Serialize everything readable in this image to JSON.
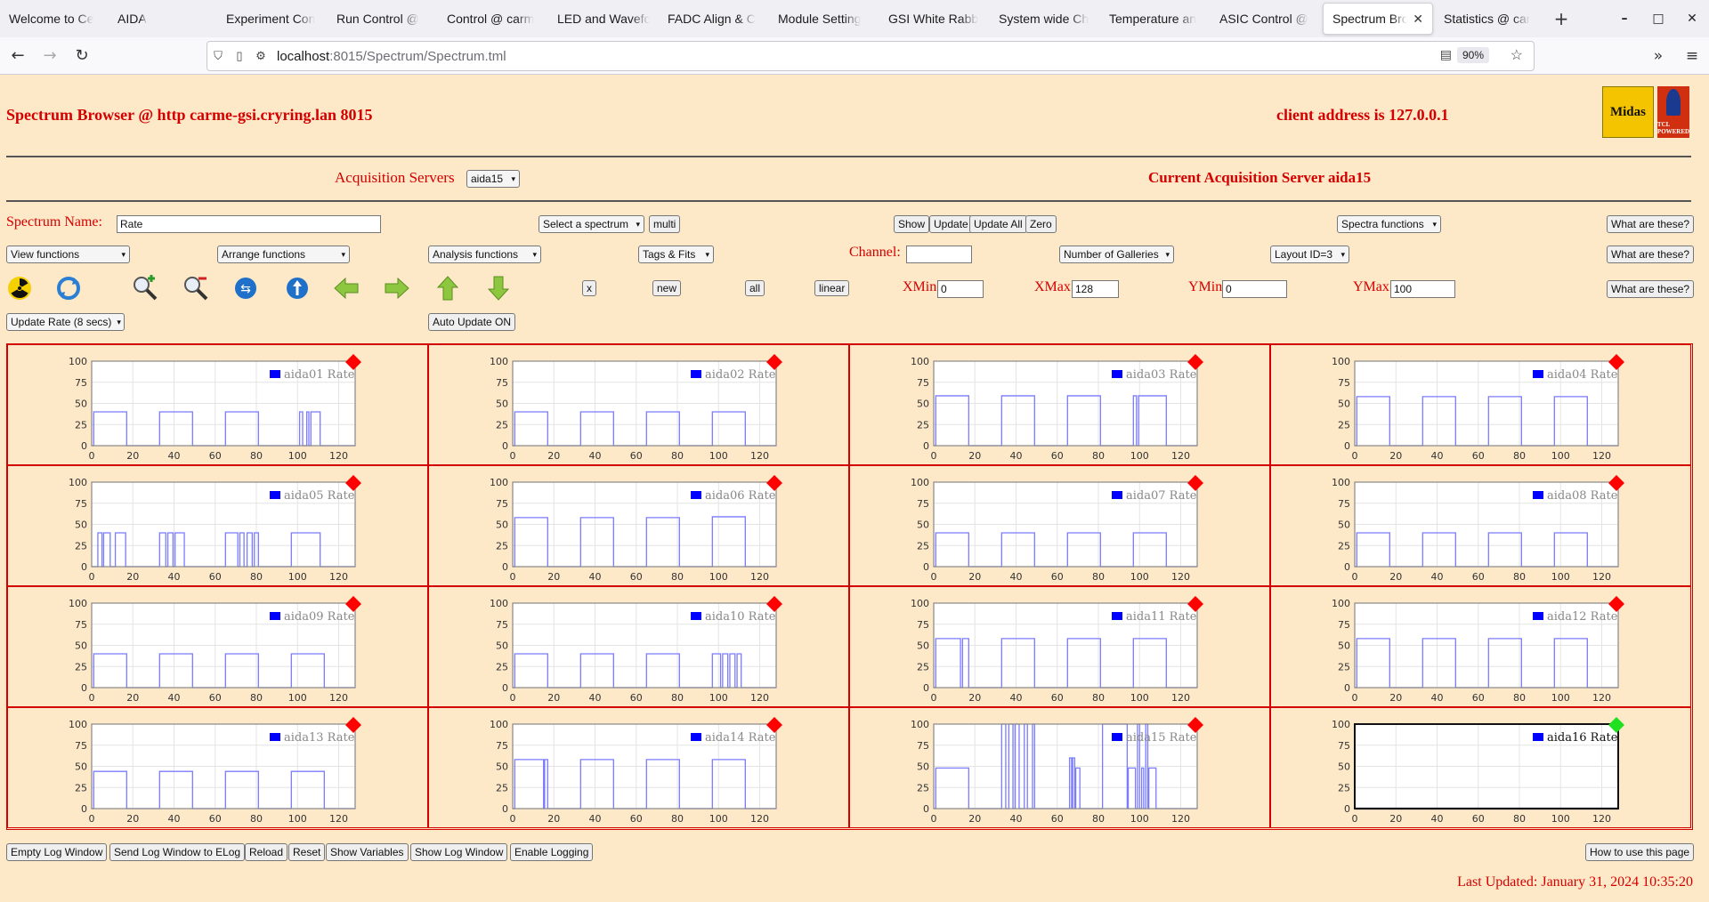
{
  "browser": {
    "tabs": [
      {
        "title": "Welcome to Ce",
        "w": 122
      },
      {
        "title": "AIDA",
        "w": 122
      },
      {
        "title": "Experiment Con",
        "w": 124
      },
      {
        "title": "Run Control @",
        "w": 124
      },
      {
        "title": "Control @ carm",
        "w": 124
      },
      {
        "title": "LED and Wavefo",
        "w": 124
      },
      {
        "title": "FADC Align & C",
        "w": 124
      },
      {
        "title": "Module Setting",
        "w": 124
      },
      {
        "title": "GSI White Rabb",
        "w": 124
      },
      {
        "title": "System wide Ch",
        "w": 124
      },
      {
        "title": "Temperature an",
        "w": 124
      },
      {
        "title": "ASIC Control @",
        "w": 124
      },
      {
        "title": "Spectrum Bro",
        "w": 124,
        "active": true
      },
      {
        "title": "Statistics @ car",
        "w": 124
      }
    ],
    "url_host": "localhost",
    "url_path": ":8015/Spectrum/Spectrum.tml",
    "zoom": "90%"
  },
  "header": {
    "title": "Spectrum Browser @ http carme-gsi.cryring.lan 8015",
    "client": "client address is 127.0.0.1",
    "midas_logo": "Midas",
    "tcl_logo": "TCL POWERED"
  },
  "acq": {
    "label": "Acquisition Servers",
    "selected": "aida15",
    "current": "Current Acquisition Server aida15"
  },
  "row1": {
    "spectrum_name_label": "Spectrum Name:",
    "spectrum_name_value": "Rate",
    "select_spectrum": "Select a spectrum",
    "multi": "multi",
    "show": "Show",
    "update": "Update",
    "update_all": "Update All",
    "zero": "Zero",
    "spectra_functions": "Spectra functions",
    "what": "What are these?"
  },
  "row2": {
    "view_functions": "View functions",
    "arrange_functions": "Arrange functions",
    "analysis_functions": "Analysis functions",
    "tags_fits": "Tags & Fits",
    "channel_label": "Channel:",
    "channel_value": "",
    "galleries": "Number of Galleries",
    "layout": "Layout ID=3",
    "what": "What are these?"
  },
  "row3": {
    "x": "x",
    "new": "new",
    "all": "all",
    "linear": "linear",
    "xmin_label": "XMin",
    "xmin": "0",
    "xmax_label": "XMax",
    "xmax": "128",
    "ymin_label": "YMin",
    "ymin": "0",
    "ymax_label": "YMax",
    "ymax": "100",
    "what": "What are these?"
  },
  "row4": {
    "update_rate": "Update Rate (8 secs)",
    "auto_update": "Auto Update ON"
  },
  "icons": [
    "radiation-icon",
    "refresh-icon",
    "zoom-in-icon",
    "zoom-out-icon",
    "expand-horizontal-icon",
    "expand-vertical-icon",
    "arrow-left-icon",
    "arrow-right-icon",
    "arrow-up-icon",
    "arrow-down-icon"
  ],
  "chart_data": [
    {
      "type": "line",
      "legend": "aida01 Rate",
      "status": "red",
      "xlim": [
        0,
        128
      ],
      "ylim": [
        0,
        100
      ],
      "yticks": [
        0,
        25,
        50,
        75,
        100
      ],
      "xticks": [
        0,
        20,
        40,
        60,
        80,
        100,
        120
      ],
      "segments": [
        [
          1,
          17,
          40
        ],
        [
          33,
          49,
          40
        ],
        [
          65,
          81,
          40
        ],
        [
          101,
          102.5,
          40
        ],
        [
          104.5,
          105.5,
          40
        ],
        [
          106.5,
          111,
          40
        ]
      ]
    },
    {
      "type": "line",
      "legend": "aida02 Rate",
      "status": "red",
      "xlim": [
        0,
        128
      ],
      "ylim": [
        0,
        100
      ],
      "yticks": [
        0,
        25,
        50,
        75,
        100
      ],
      "xticks": [
        0,
        20,
        40,
        60,
        80,
        100,
        120
      ],
      "segments": [
        [
          1,
          17,
          40
        ],
        [
          33,
          49,
          40
        ],
        [
          65,
          81,
          40
        ],
        [
          97,
          113,
          40
        ]
      ]
    },
    {
      "type": "line",
      "legend": "aida03 Rate",
      "status": "red",
      "xlim": [
        0,
        128
      ],
      "ylim": [
        0,
        100
      ],
      "yticks": [
        0,
        25,
        50,
        75,
        100
      ],
      "xticks": [
        0,
        20,
        40,
        60,
        80,
        100,
        120
      ],
      "segments": [
        [
          1,
          17,
          59
        ],
        [
          33,
          49,
          59
        ],
        [
          65,
          81,
          59
        ],
        [
          97,
          98.5,
          59
        ],
        [
          99.5,
          113,
          59
        ]
      ]
    },
    {
      "type": "line",
      "legend": "aida04 Rate",
      "status": "red",
      "xlim": [
        0,
        128
      ],
      "ylim": [
        0,
        100
      ],
      "yticks": [
        0,
        25,
        50,
        75,
        100
      ],
      "xticks": [
        0,
        20,
        40,
        60,
        80,
        100,
        120
      ],
      "segments": [
        [
          1,
          17,
          58
        ],
        [
          33,
          49,
          58
        ],
        [
          65,
          81,
          58
        ],
        [
          97,
          113,
          58
        ]
      ]
    },
    {
      "type": "line",
      "legend": "aida05 Rate",
      "status": "red",
      "xlim": [
        0,
        128
      ],
      "ylim": [
        0,
        100
      ],
      "yticks": [
        0,
        25,
        50,
        75,
        100
      ],
      "xticks": [
        0,
        20,
        40,
        60,
        80,
        100,
        120
      ],
      "segments": [
        [
          3,
          5,
          40
        ],
        [
          5.8,
          9,
          40
        ],
        [
          11.5,
          16.5,
          40
        ],
        [
          33,
          36,
          40
        ],
        [
          37,
          39.5,
          40
        ],
        [
          40.5,
          45,
          40
        ],
        [
          65,
          71,
          40
        ],
        [
          72,
          74,
          40
        ],
        [
          75.5,
          78,
          40
        ],
        [
          79,
          81,
          40
        ],
        [
          97,
          111,
          40
        ]
      ]
    },
    {
      "type": "line",
      "legend": "aida06 Rate",
      "status": "red",
      "xlim": [
        0,
        128
      ],
      "ylim": [
        0,
        100
      ],
      "yticks": [
        0,
        25,
        50,
        75,
        100
      ],
      "xticks": [
        0,
        20,
        40,
        60,
        80,
        100,
        120
      ],
      "segments": [
        [
          1,
          17,
          58
        ],
        [
          33,
          49,
          58
        ],
        [
          65,
          81,
          58
        ],
        [
          97,
          113,
          59
        ]
      ]
    },
    {
      "type": "line",
      "legend": "aida07 Rate",
      "status": "red",
      "xlim": [
        0,
        128
      ],
      "ylim": [
        0,
        100
      ],
      "yticks": [
        0,
        25,
        50,
        75,
        100
      ],
      "xticks": [
        0,
        20,
        40,
        60,
        80,
        100,
        120
      ],
      "segments": [
        [
          1,
          17,
          40
        ],
        [
          33,
          49,
          40
        ],
        [
          65,
          81,
          40
        ],
        [
          97,
          113,
          40
        ]
      ]
    },
    {
      "type": "line",
      "legend": "aida08 Rate",
      "status": "red",
      "xlim": [
        0,
        128
      ],
      "ylim": [
        0,
        100
      ],
      "yticks": [
        0,
        25,
        50,
        75,
        100
      ],
      "xticks": [
        0,
        20,
        40,
        60,
        80,
        100,
        120
      ],
      "segments": [
        [
          1,
          17,
          40
        ],
        [
          33,
          49,
          40
        ],
        [
          65,
          81,
          40
        ],
        [
          97,
          113,
          40
        ]
      ]
    },
    {
      "type": "line",
      "legend": "aida09 Rate",
      "status": "red",
      "xlim": [
        0,
        128
      ],
      "ylim": [
        0,
        100
      ],
      "yticks": [
        0,
        25,
        50,
        75,
        100
      ],
      "xticks": [
        0,
        20,
        40,
        60,
        80,
        100,
        120
      ],
      "segments": [
        [
          1,
          17,
          40
        ],
        [
          33,
          49,
          40
        ],
        [
          65,
          81,
          40
        ],
        [
          97,
          113,
          40
        ]
      ]
    },
    {
      "type": "line",
      "legend": "aida10 Rate",
      "status": "red",
      "xlim": [
        0,
        128
      ],
      "ylim": [
        0,
        100
      ],
      "yticks": [
        0,
        25,
        50,
        75,
        100
      ],
      "xticks": [
        0,
        20,
        40,
        60,
        80,
        100,
        120
      ],
      "segments": [
        [
          1,
          17,
          40
        ],
        [
          33,
          49,
          40
        ],
        [
          65,
          81,
          40
        ],
        [
          97,
          101,
          40
        ],
        [
          102,
          104.5,
          40
        ],
        [
          105.5,
          108,
          40
        ],
        [
          109,
          111,
          40
        ]
      ]
    },
    {
      "type": "line",
      "legend": "aida11 Rate",
      "status": "red",
      "xlim": [
        0,
        128
      ],
      "ylim": [
        0,
        100
      ],
      "yticks": [
        0,
        25,
        50,
        75,
        100
      ],
      "xticks": [
        0,
        20,
        40,
        60,
        80,
        100,
        120
      ],
      "segments": [
        [
          1,
          13,
          58
        ],
        [
          14,
          17,
          58
        ],
        [
          33,
          49,
          58
        ],
        [
          65,
          81,
          58
        ],
        [
          97,
          113,
          58
        ]
      ]
    },
    {
      "type": "line",
      "legend": "aida12 Rate",
      "status": "red",
      "xlim": [
        0,
        128
      ],
      "ylim": [
        0,
        100
      ],
      "yticks": [
        0,
        25,
        50,
        75,
        100
      ],
      "xticks": [
        0,
        20,
        40,
        60,
        80,
        100,
        120
      ],
      "segments": [
        [
          1,
          17,
          58
        ],
        [
          33,
          49,
          58
        ],
        [
          65,
          81,
          58
        ],
        [
          97,
          113,
          58
        ]
      ]
    },
    {
      "type": "line",
      "legend": "aida13 Rate",
      "status": "red",
      "xlim": [
        0,
        128
      ],
      "ylim": [
        0,
        100
      ],
      "yticks": [
        0,
        25,
        50,
        75,
        100
      ],
      "xticks": [
        0,
        20,
        40,
        60,
        80,
        100,
        120
      ],
      "segments": [
        [
          1,
          17,
          44
        ],
        [
          33,
          49,
          44
        ],
        [
          65,
          81,
          44
        ],
        [
          97,
          113,
          44
        ]
      ]
    },
    {
      "type": "line",
      "legend": "aida14 Rate",
      "status": "red",
      "xlim": [
        0,
        128
      ],
      "ylim": [
        0,
        100
      ],
      "yticks": [
        0,
        25,
        50,
        75,
        100
      ],
      "xticks": [
        0,
        20,
        40,
        60,
        80,
        100,
        120
      ],
      "segments": [
        [
          1,
          15,
          58
        ],
        [
          15.5,
          17,
          58
        ],
        [
          33,
          49,
          58
        ],
        [
          65,
          81,
          58
        ],
        [
          97,
          113,
          58
        ]
      ]
    },
    {
      "type": "line",
      "legend": "aida15 Rate",
      "status": "red",
      "xlim": [
        0,
        128
      ],
      "ylim": [
        0,
        100
      ],
      "yticks": [
        0,
        25,
        50,
        75,
        100
      ],
      "xticks": [
        0,
        20,
        40,
        60,
        80,
        100,
        120
      ],
      "segments": [
        [
          1,
          17,
          48
        ],
        [
          33,
          35,
          100
        ],
        [
          36.5,
          38.5,
          100
        ],
        [
          39.5,
          41.5,
          100
        ],
        [
          44,
          45.5,
          100
        ],
        [
          48,
          49,
          100
        ],
        [
          66,
          67,
          60
        ],
        [
          67.5,
          68.5,
          60
        ],
        [
          69,
          71,
          48
        ],
        [
          82,
          94,
          100
        ],
        [
          94.5,
          98,
          48
        ],
        [
          99,
          100,
          100
        ],
        [
          101,
          102,
          48
        ],
        [
          103,
          104,
          100
        ],
        [
          104.5,
          108,
          48
        ]
      ]
    },
    {
      "type": "line",
      "legend": "aida16 Rate",
      "status": "green",
      "xlim": [
        0,
        128
      ],
      "ylim": [
        0,
        100
      ],
      "yticks": [
        0,
        25,
        50,
        75,
        100
      ],
      "xticks": [
        0,
        20,
        40,
        60,
        80,
        100,
        120
      ],
      "segments": []
    }
  ],
  "footer": {
    "empty_log": "Empty Log Window",
    "send_log": "Send Log Window to ELog",
    "reload": "Reload",
    "reset": "Reset",
    "show_vars": "Show Variables",
    "show_log": "Show Log Window",
    "enable_logging": "Enable Logging",
    "how_to": "How to use this page",
    "last_updated": "Last Updated: January 31, 2024 10:35:20"
  }
}
